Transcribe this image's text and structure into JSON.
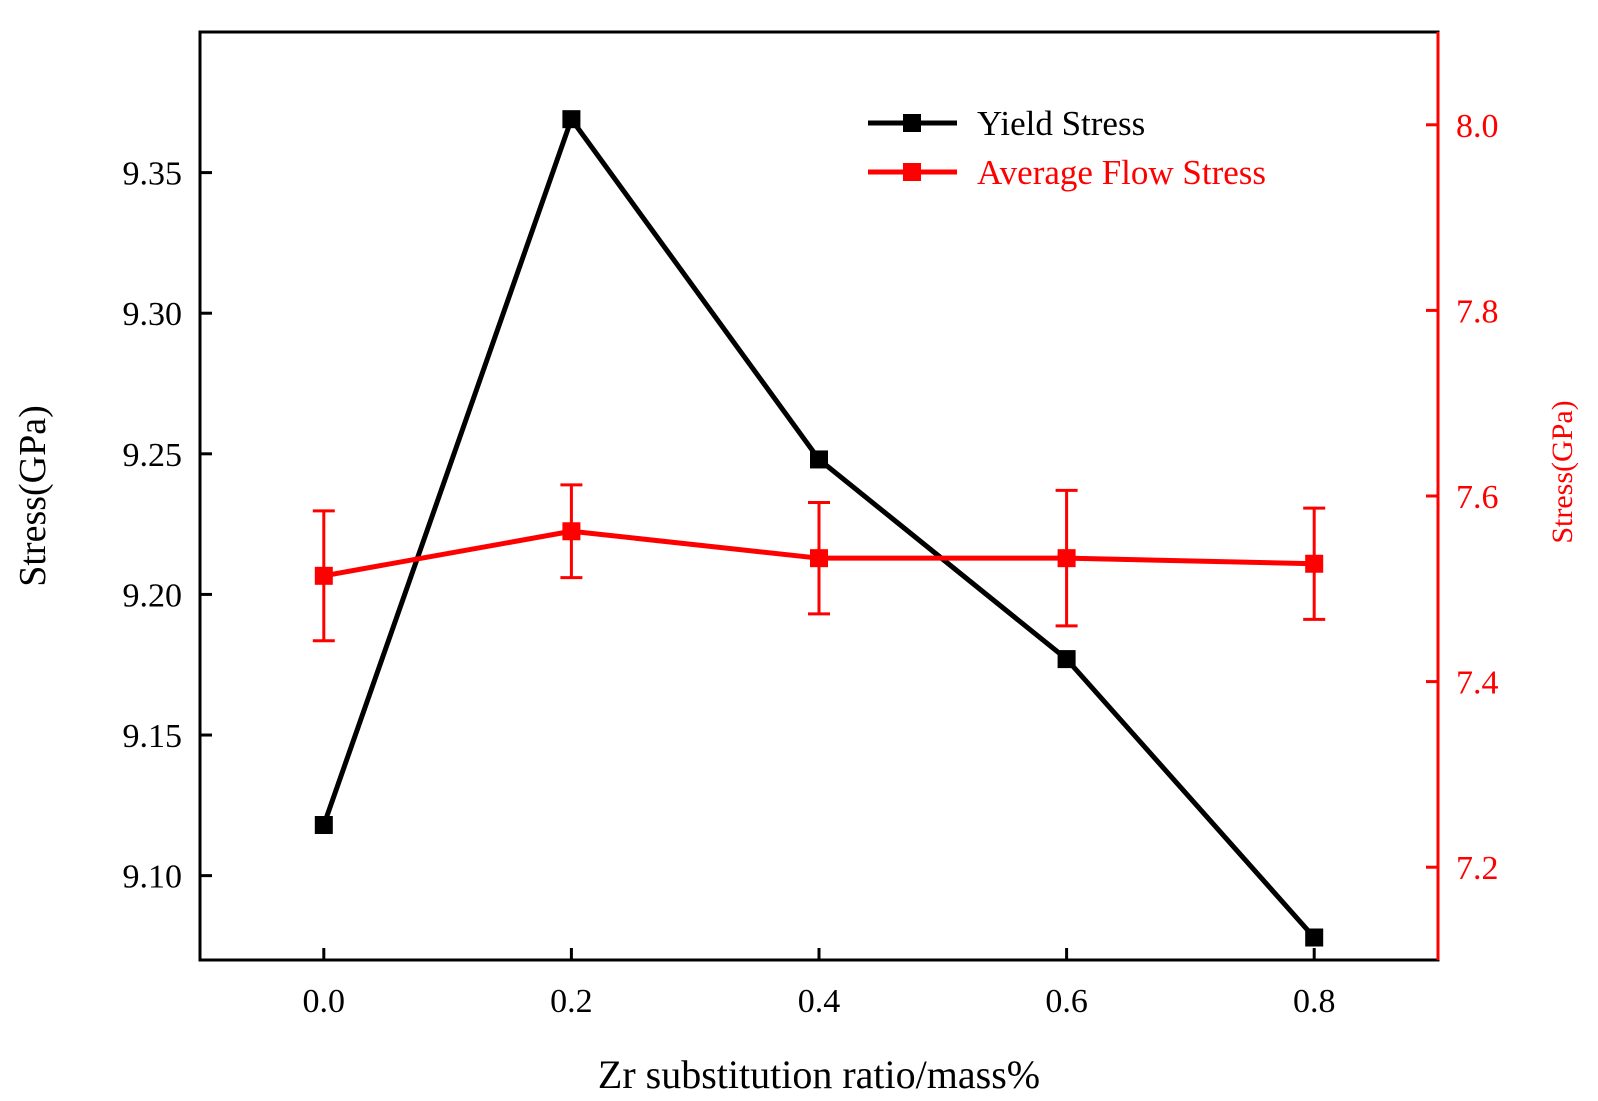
{
  "chart_data": {
    "type": "line",
    "title": "",
    "xlabel": "Zr substitution ratio/mass%",
    "ylabel_left": "Stress(GPa)",
    "ylabel_right": "Stress(GPa)",
    "xlim": [
      -0.1,
      0.9
    ],
    "ylim_left": [
      9.07,
      9.4
    ],
    "ylim_right": [
      7.1,
      8.1
    ],
    "x_ticks": [
      "0.0",
      "0.2",
      "0.4",
      "0.6",
      "0.8"
    ],
    "y_left_ticks": [
      "9.10",
      "9.15",
      "9.20",
      "9.25",
      "9.30",
      "9.35"
    ],
    "y_right_ticks": [
      "7.2",
      "7.4",
      "7.6",
      "7.8",
      "8.0"
    ],
    "x": [
      0.0,
      0.2,
      0.4,
      0.6,
      0.8
    ],
    "series": [
      {
        "name": "Yield Stress",
        "axis": "left",
        "color": "#000000",
        "values": [
          9.118,
          9.369,
          9.248,
          9.177,
          9.078
        ]
      },
      {
        "name": "Average Flow Stress",
        "axis": "right",
        "color": "#ff0000",
        "values": [
          7.514,
          7.562,
          7.533,
          7.533,
          7.527
        ],
        "error": [
          0.07,
          0.05,
          0.06,
          0.073,
          0.06
        ]
      }
    ],
    "legend_position": "top-right",
    "grid": false
  }
}
